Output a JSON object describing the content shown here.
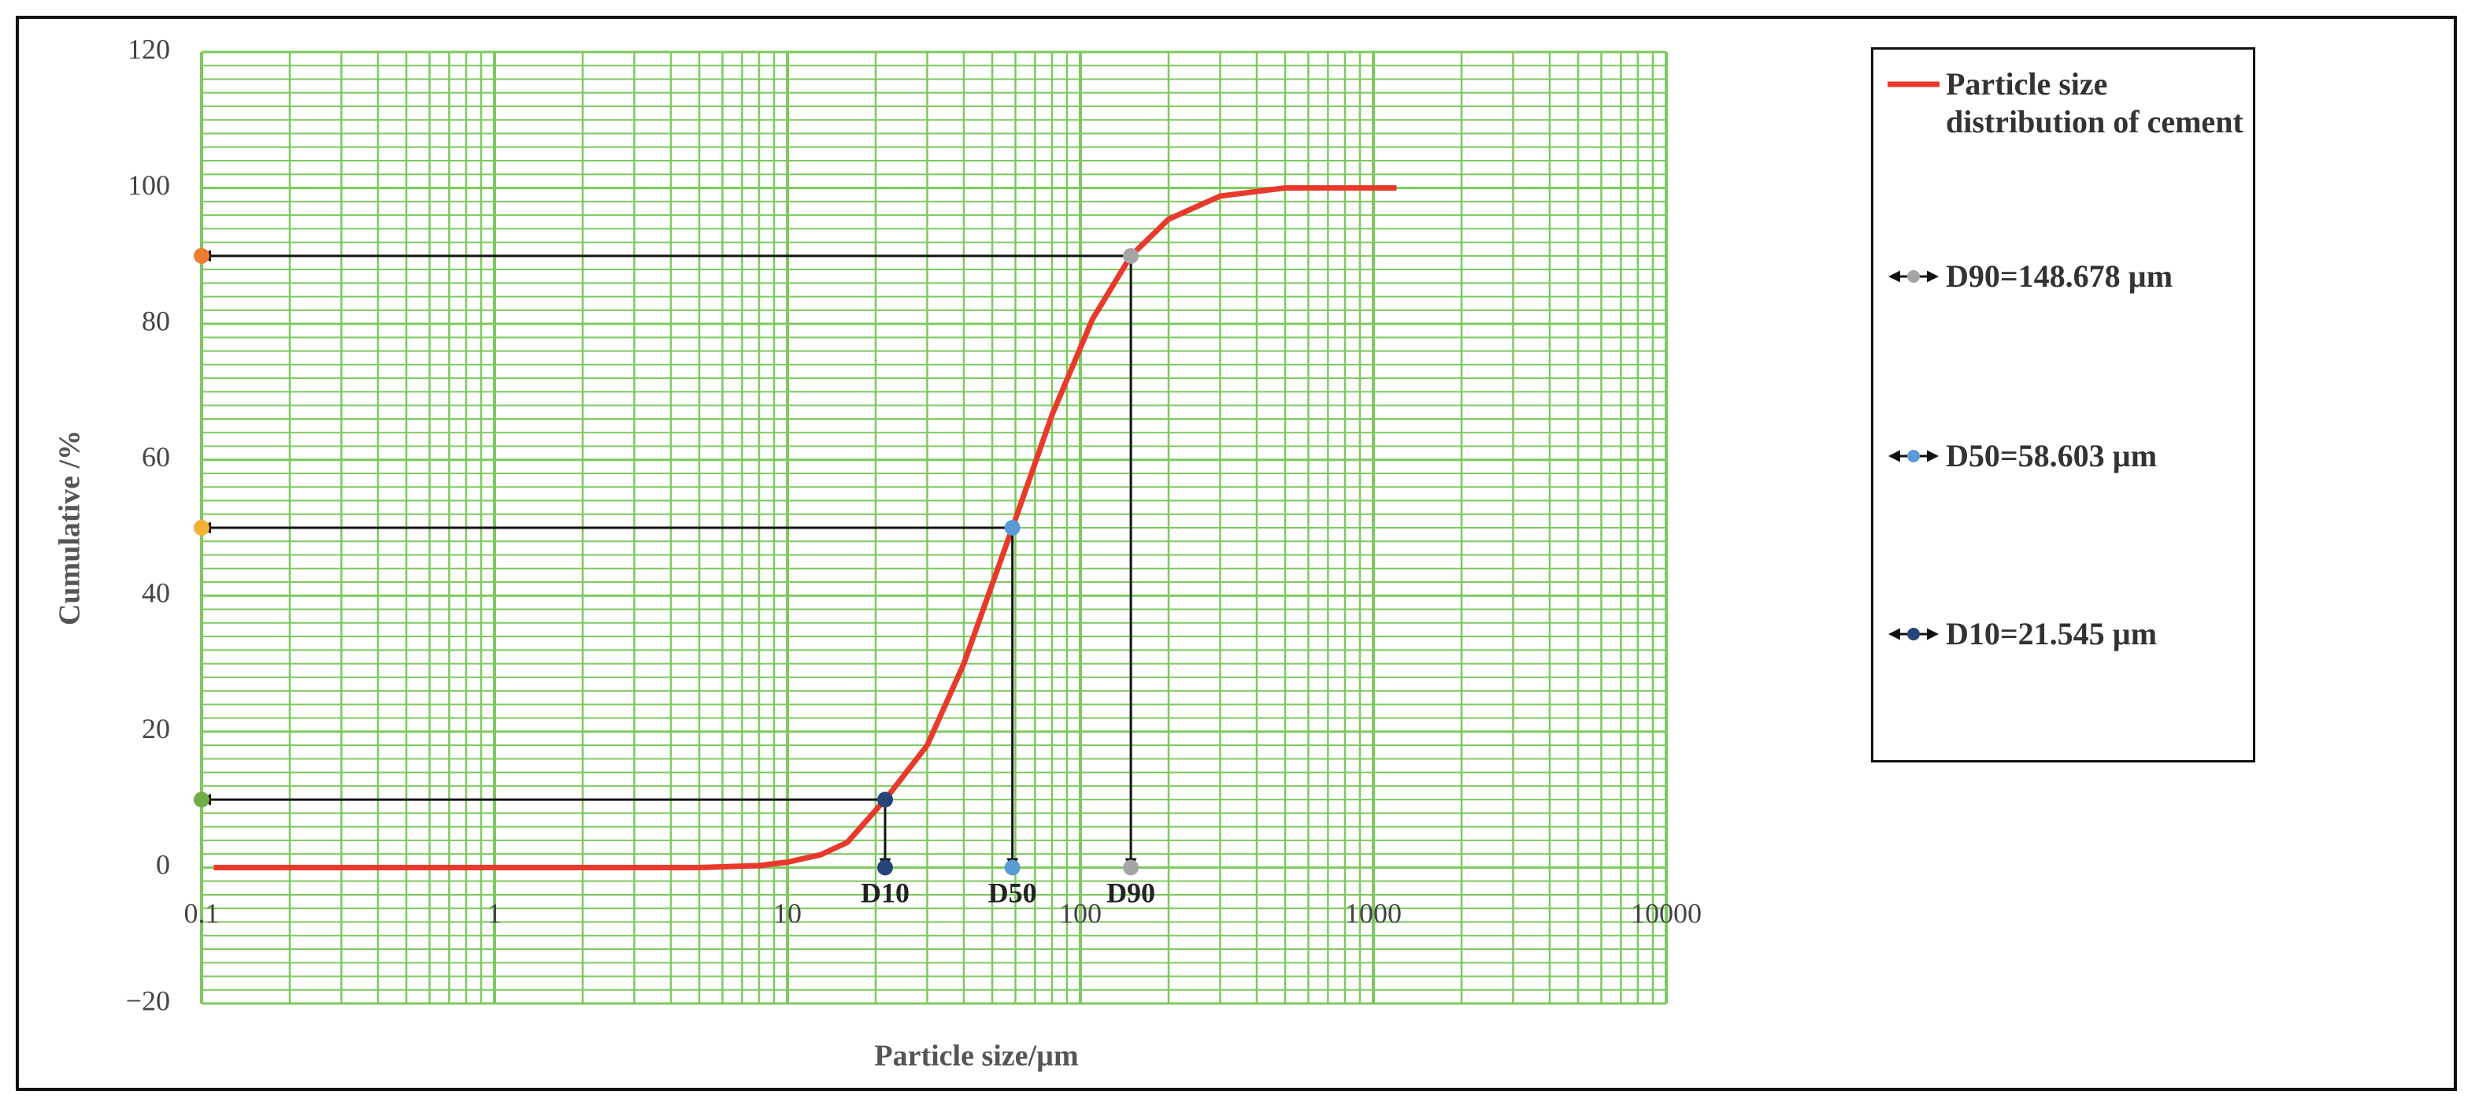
{
  "chart_data": {
    "type": "line",
    "x_label": "Particle size/µm",
    "y_label": "Cumulative /%",
    "xscale": "log",
    "xlim": [
      0.1,
      10000
    ],
    "xticks": [
      0.1,
      1,
      10,
      100,
      1000,
      10000
    ],
    "ylim": [
      -20,
      120
    ],
    "yticks": [
      {
        "value": -20,
        "label": "−20"
      },
      0,
      20,
      40,
      60,
      80,
      100,
      120
    ],
    "grid": true,
    "grid_color": "#7dc95e",
    "series": [
      {
        "name": "Particle size distribution of cement",
        "color": "#e8392b",
        "x": [
          0.11,
          1,
          5,
          8,
          10,
          13,
          16,
          21.545,
          30,
          40,
          58.603,
          80,
          110,
          148.678,
          200,
          300,
          500,
          1200
        ],
        "values": [
          0,
          0,
          0,
          0.3,
          0.8,
          1.9,
          3.7,
          10,
          18,
          30,
          50,
          66.6,
          80.7,
          90,
          95.4,
          98.8,
          100,
          100
        ]
      },
      {
        "name": "D90=148.678 µm",
        "tag": "D90",
        "color": "#a5a5a5",
        "point_colors": [
          "#ed7d31",
          "#a5a5a5",
          "#a5a5a5"
        ],
        "x": [
          0.1,
          148.678,
          148.678
        ],
        "values": [
          90,
          90,
          0
        ]
      },
      {
        "name": "D50=58.603 µm",
        "tag": "D50",
        "color": "#5b9bd5",
        "point_colors": [
          "#f2b134",
          "#5b9bd5",
          "#5b9bd5"
        ],
        "x": [
          0.1,
          58.603,
          58.603
        ],
        "values": [
          50,
          50,
          0
        ]
      },
      {
        "name": "D10=21.545 µm",
        "tag": "D10",
        "color": "#264478",
        "point_colors": [
          "#70ad47",
          "#264478",
          "#264478"
        ],
        "x": [
          0.1,
          21.545,
          21.545
        ],
        "values": [
          10,
          10,
          0
        ]
      }
    ]
  }
}
